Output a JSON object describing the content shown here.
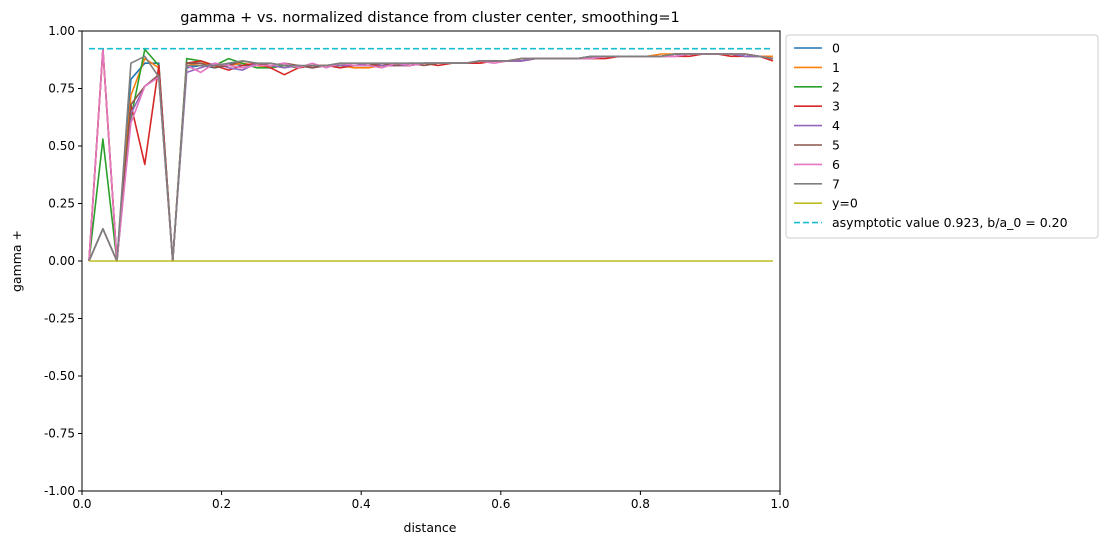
{
  "chart_data": {
    "type": "line",
    "title": "gamma + vs. normalized distance from cluster center, smoothing=1",
    "xlabel": "distance",
    "ylabel": "gamma +",
    "xlim": [
      0.0,
      1.0
    ],
    "ylim": [
      -1.0,
      1.0
    ],
    "xticks": [
      "0.0",
      "0.2",
      "0.4",
      "0.6",
      "0.8",
      "1.0"
    ],
    "yticks": [
      "-1.00",
      "-0.75",
      "-0.50",
      "-0.25",
      "0.00",
      "0.25",
      "0.50",
      "0.75",
      "1.00"
    ],
    "grid": false,
    "legend_placement": "outside-upper-right",
    "colors": [
      "#1f77b4",
      "#ff7f0e",
      "#2ca02c",
      "#d62728",
      "#9467bd",
      "#8c564b",
      "#e377c2",
      "#7f7f7f",
      "#bcbd22",
      "#17becf"
    ],
    "x": [
      0.01,
      0.03,
      0.05,
      0.07,
      0.09,
      0.11,
      0.13,
      0.15,
      0.17,
      0.19,
      0.21,
      0.23,
      0.25,
      0.27,
      0.29,
      0.31,
      0.33,
      0.35,
      0.37,
      0.39,
      0.41,
      0.43,
      0.45,
      0.47,
      0.49,
      0.51,
      0.53,
      0.55,
      0.57,
      0.59,
      0.61,
      0.63,
      0.65,
      0.67,
      0.69,
      0.71,
      0.73,
      0.75,
      0.77,
      0.79,
      0.81,
      0.83,
      0.85,
      0.87,
      0.89,
      0.91,
      0.93,
      0.95,
      0.97,
      0.99
    ],
    "series": [
      {
        "name": "0",
        "values": [
          0.0,
          0.92,
          0.0,
          0.79,
          0.86,
          0.86,
          0.0,
          0.84,
          0.85,
          0.84,
          0.86,
          0.85,
          0.85,
          0.84,
          0.85,
          0.85,
          0.84,
          0.85,
          0.85,
          0.85,
          0.85,
          0.85,
          0.86,
          0.85,
          0.86,
          0.86,
          0.86,
          0.86,
          0.87,
          0.87,
          0.87,
          0.87,
          0.88,
          0.88,
          0.88,
          0.88,
          0.89,
          0.89,
          0.89,
          0.89,
          0.89,
          0.89,
          0.9,
          0.9,
          0.9,
          0.9,
          0.9,
          0.89,
          0.89,
          0.88
        ]
      },
      {
        "name": "1",
        "values": [
          0.0,
          0.92,
          0.0,
          0.72,
          0.88,
          0.84,
          0.0,
          0.85,
          0.86,
          0.85,
          0.85,
          0.86,
          0.85,
          0.84,
          0.85,
          0.84,
          0.85,
          0.85,
          0.85,
          0.84,
          0.84,
          0.85,
          0.85,
          0.85,
          0.86,
          0.86,
          0.86,
          0.86,
          0.86,
          0.87,
          0.87,
          0.88,
          0.88,
          0.88,
          0.88,
          0.88,
          0.89,
          0.89,
          0.89,
          0.89,
          0.89,
          0.9,
          0.9,
          0.9,
          0.9,
          0.9,
          0.9,
          0.9,
          0.89,
          0.89
        ]
      },
      {
        "name": "2",
        "values": [
          0.0,
          0.53,
          0.0,
          0.62,
          0.92,
          0.85,
          0.0,
          0.88,
          0.87,
          0.85,
          0.88,
          0.86,
          0.84,
          0.84,
          0.85,
          0.84,
          0.85,
          0.85,
          0.85,
          0.85,
          0.85,
          0.85,
          0.85,
          0.86,
          0.86,
          0.86,
          0.86,
          0.86,
          0.87,
          0.87,
          0.87,
          0.88,
          0.88,
          0.88,
          0.88,
          0.88,
          0.89,
          0.89,
          0.89,
          0.89,
          0.89,
          0.89,
          0.9,
          0.9,
          0.9,
          0.9,
          0.9,
          0.89,
          0.89,
          0.88
        ]
      },
      {
        "name": "3",
        "values": [
          0.0,
          0.92,
          0.0,
          0.68,
          0.42,
          0.85,
          0.0,
          0.86,
          0.87,
          0.85,
          0.83,
          0.85,
          0.86,
          0.84,
          0.81,
          0.84,
          0.85,
          0.85,
          0.84,
          0.85,
          0.85,
          0.85,
          0.85,
          0.85,
          0.86,
          0.85,
          0.86,
          0.86,
          0.86,
          0.87,
          0.87,
          0.87,
          0.88,
          0.88,
          0.88,
          0.88,
          0.88,
          0.88,
          0.89,
          0.89,
          0.89,
          0.89,
          0.89,
          0.89,
          0.9,
          0.9,
          0.89,
          0.89,
          0.89,
          0.87
        ]
      },
      {
        "name": "4",
        "values": [
          0.0,
          0.14,
          0.0,
          0.64,
          0.76,
          0.8,
          0.0,
          0.82,
          0.84,
          0.86,
          0.84,
          0.83,
          0.86,
          0.85,
          0.84,
          0.85,
          0.84,
          0.85,
          0.85,
          0.85,
          0.86,
          0.85,
          0.85,
          0.85,
          0.86,
          0.86,
          0.86,
          0.86,
          0.87,
          0.87,
          0.87,
          0.87,
          0.88,
          0.88,
          0.88,
          0.88,
          0.89,
          0.89,
          0.89,
          0.89,
          0.89,
          0.89,
          0.89,
          0.9,
          0.9,
          0.9,
          0.9,
          0.89,
          0.89,
          0.88
        ]
      },
      {
        "name": "5",
        "values": [
          0.0,
          0.14,
          0.0,
          0.68,
          0.76,
          0.81,
          0.0,
          0.86,
          0.86,
          0.84,
          0.85,
          0.87,
          0.86,
          0.85,
          0.86,
          0.85,
          0.84,
          0.85,
          0.86,
          0.85,
          0.85,
          0.86,
          0.85,
          0.86,
          0.85,
          0.86,
          0.86,
          0.86,
          0.87,
          0.87,
          0.87,
          0.88,
          0.88,
          0.88,
          0.88,
          0.88,
          0.88,
          0.89,
          0.89,
          0.89,
          0.89,
          0.89,
          0.9,
          0.9,
          0.9,
          0.9,
          0.9,
          0.9,
          0.89,
          0.88
        ]
      },
      {
        "name": "6",
        "values": [
          0.0,
          0.92,
          0.0,
          0.6,
          0.76,
          0.8,
          0.0,
          0.85,
          0.82,
          0.86,
          0.85,
          0.84,
          0.85,
          0.85,
          0.86,
          0.84,
          0.86,
          0.84,
          0.86,
          0.85,
          0.85,
          0.84,
          0.86,
          0.85,
          0.86,
          0.86,
          0.86,
          0.86,
          0.87,
          0.86,
          0.87,
          0.88,
          0.88,
          0.88,
          0.88,
          0.88,
          0.88,
          0.89,
          0.89,
          0.89,
          0.89,
          0.89,
          0.89,
          0.9,
          0.9,
          0.9,
          0.9,
          0.9,
          0.89,
          0.88
        ]
      },
      {
        "name": "7",
        "values": [
          0.0,
          0.14,
          0.0,
          0.86,
          0.89,
          0.8,
          0.0,
          0.85,
          0.85,
          0.85,
          0.86,
          0.87,
          0.86,
          0.86,
          0.85,
          0.85,
          0.85,
          0.85,
          0.86,
          0.86,
          0.86,
          0.86,
          0.86,
          0.86,
          0.86,
          0.86,
          0.86,
          0.86,
          0.87,
          0.87,
          0.87,
          0.88,
          0.88,
          0.88,
          0.88,
          0.88,
          0.89,
          0.89,
          0.89,
          0.89,
          0.89,
          0.89,
          0.9,
          0.9,
          0.9,
          0.9,
          0.9,
          0.9,
          0.89,
          0.88
        ]
      },
      {
        "name": "y=0",
        "values": [
          0,
          0,
          0,
          0,
          0,
          0,
          0,
          0,
          0,
          0,
          0,
          0,
          0,
          0,
          0,
          0,
          0,
          0,
          0,
          0,
          0,
          0,
          0,
          0,
          0,
          0,
          0,
          0,
          0,
          0,
          0,
          0,
          0,
          0,
          0,
          0,
          0,
          0,
          0,
          0,
          0,
          0,
          0,
          0,
          0,
          0,
          0,
          0,
          0,
          0
        ]
      }
    ],
    "asymptote": {
      "name": "asymptotic value 0.923, b/a_0 = 0.20",
      "y": 0.923,
      "x_range": [
        0.01,
        0.99
      ],
      "style": "dashed"
    }
  }
}
